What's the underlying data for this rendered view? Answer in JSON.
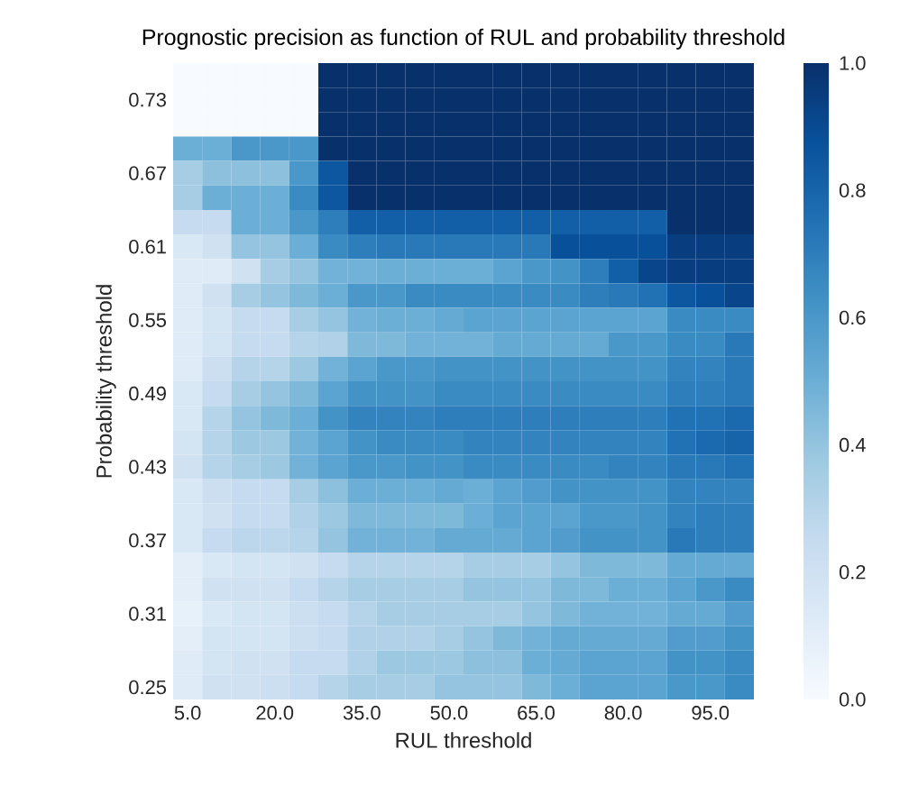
{
  "chart_data": {
    "type": "heatmap",
    "title": "Prognostic precision as function of RUL and probability threshold",
    "xlabel": "RUL threshold",
    "ylabel": "Probability threshold",
    "categories": [
      "5.0",
      null,
      null,
      "20.0",
      null,
      null,
      "35.0",
      null,
      null,
      "50.0",
      null,
      null,
      "65.0",
      null,
      null,
      "80.0",
      null,
      null,
      "95.0",
      null
    ],
    "y_categories": [
      null,
      "0.73",
      null,
      null,
      "0.67",
      null,
      null,
      "0.61",
      null,
      null,
      "0.55",
      null,
      null,
      "0.49",
      null,
      null,
      "0.43",
      null,
      null,
      "0.37",
      null,
      null,
      "0.31",
      null,
      null,
      "0.25"
    ],
    "cells": [
      [
        0,
        0,
        0,
        0,
        0,
        1,
        1,
        1,
        1,
        1,
        1,
        1,
        1,
        1,
        1,
        1,
        1,
        1,
        1,
        1
      ],
      [
        0,
        0,
        0,
        0,
        0,
        1,
        1,
        1,
        1,
        1,
        1,
        1,
        1,
        1,
        1,
        1,
        1,
        1,
        1,
        1
      ],
      [
        0,
        0,
        0,
        0,
        0,
        1,
        1,
        1,
        1,
        1,
        1,
        1,
        1,
        1,
        1,
        1,
        1,
        1,
        1,
        1
      ],
      [
        0.5,
        0.5,
        0.6,
        0.6,
        0.6,
        1,
        1,
        1,
        1,
        1,
        1,
        1,
        1,
        1,
        1,
        1,
        1,
        1,
        1,
        1
      ],
      [
        0.35,
        0.42,
        0.42,
        0.42,
        0.6,
        0.85,
        1,
        1,
        1,
        1,
        1,
        1,
        1,
        1,
        1,
        1,
        1,
        1,
        1,
        1
      ],
      [
        0.35,
        0.5,
        0.5,
        0.5,
        0.65,
        0.85,
        1,
        1,
        1,
        1,
        1,
        1,
        1,
        1,
        1,
        1,
        1,
        1,
        1,
        1
      ],
      [
        0.25,
        0.25,
        0.5,
        0.5,
        0.6,
        0.7,
        0.82,
        0.82,
        0.82,
        0.82,
        0.82,
        0.82,
        0.82,
        0.82,
        0.82,
        0.82,
        0.82,
        1,
        1,
        1
      ],
      [
        0.15,
        0.2,
        0.4,
        0.4,
        0.5,
        0.65,
        0.7,
        0.72,
        0.72,
        0.72,
        0.72,
        0.72,
        0.72,
        0.88,
        0.88,
        0.88,
        0.88,
        0.95,
        0.95,
        0.95
      ],
      [
        0.12,
        0.12,
        0.2,
        0.35,
        0.4,
        0.48,
        0.48,
        0.5,
        0.5,
        0.5,
        0.5,
        0.55,
        0.6,
        0.62,
        0.7,
        0.82,
        0.92,
        0.95,
        0.95,
        0.95
      ],
      [
        0.12,
        0.2,
        0.35,
        0.4,
        0.45,
        0.5,
        0.6,
        0.6,
        0.65,
        0.65,
        0.65,
        0.65,
        0.65,
        0.65,
        0.7,
        0.72,
        0.75,
        0.85,
        0.88,
        0.92
      ],
      [
        0.12,
        0.18,
        0.25,
        0.25,
        0.35,
        0.4,
        0.48,
        0.5,
        0.5,
        0.52,
        0.55,
        0.55,
        0.55,
        0.55,
        0.55,
        0.55,
        0.55,
        0.65,
        0.65,
        0.65
      ],
      [
        0.12,
        0.18,
        0.25,
        0.25,
        0.3,
        0.32,
        0.45,
        0.45,
        0.48,
        0.48,
        0.48,
        0.52,
        0.52,
        0.52,
        0.52,
        0.6,
        0.6,
        0.65,
        0.65,
        0.72
      ],
      [
        0.12,
        0.22,
        0.3,
        0.3,
        0.38,
        0.48,
        0.55,
        0.6,
        0.6,
        0.62,
        0.62,
        0.62,
        0.62,
        0.62,
        0.62,
        0.62,
        0.62,
        0.68,
        0.68,
        0.72
      ],
      [
        0.15,
        0.25,
        0.35,
        0.4,
        0.45,
        0.55,
        0.62,
        0.62,
        0.62,
        0.65,
        0.65,
        0.65,
        0.65,
        0.65,
        0.65,
        0.65,
        0.65,
        0.7,
        0.7,
        0.72
      ],
      [
        0.15,
        0.3,
        0.4,
        0.45,
        0.5,
        0.62,
        0.68,
        0.68,
        0.68,
        0.7,
        0.7,
        0.7,
        0.7,
        0.7,
        0.7,
        0.7,
        0.7,
        0.75,
        0.75,
        0.78
      ],
      [
        0.18,
        0.3,
        0.38,
        0.38,
        0.48,
        0.55,
        0.62,
        0.65,
        0.65,
        0.65,
        0.68,
        0.68,
        0.68,
        0.68,
        0.68,
        0.68,
        0.68,
        0.75,
        0.78,
        0.8
      ],
      [
        0.2,
        0.3,
        0.35,
        0.38,
        0.48,
        0.55,
        0.6,
        0.6,
        0.62,
        0.62,
        0.65,
        0.65,
        0.65,
        0.65,
        0.65,
        0.68,
        0.68,
        0.72,
        0.72,
        0.75
      ],
      [
        0.15,
        0.22,
        0.25,
        0.25,
        0.35,
        0.42,
        0.5,
        0.5,
        0.5,
        0.52,
        0.5,
        0.55,
        0.58,
        0.62,
        0.62,
        0.62,
        0.62,
        0.68,
        0.68,
        0.68
      ],
      [
        0.15,
        0.2,
        0.25,
        0.25,
        0.32,
        0.38,
        0.45,
        0.45,
        0.45,
        0.45,
        0.5,
        0.55,
        0.55,
        0.55,
        0.6,
        0.6,
        0.62,
        0.68,
        0.7,
        0.7
      ],
      [
        0.15,
        0.25,
        0.28,
        0.28,
        0.3,
        0.4,
        0.48,
        0.48,
        0.48,
        0.52,
        0.52,
        0.52,
        0.55,
        0.58,
        0.62,
        0.62,
        0.62,
        0.72,
        0.7,
        0.7
      ],
      [
        0.1,
        0.15,
        0.18,
        0.18,
        0.2,
        0.25,
        0.3,
        0.3,
        0.3,
        0.3,
        0.35,
        0.35,
        0.35,
        0.4,
        0.45,
        0.45,
        0.45,
        0.52,
        0.52,
        0.52
      ],
      [
        0.1,
        0.2,
        0.2,
        0.2,
        0.25,
        0.3,
        0.35,
        0.35,
        0.35,
        0.35,
        0.4,
        0.4,
        0.4,
        0.45,
        0.45,
        0.5,
        0.5,
        0.55,
        0.6,
        0.65
      ],
      [
        0.08,
        0.15,
        0.18,
        0.18,
        0.22,
        0.25,
        0.3,
        0.35,
        0.35,
        0.35,
        0.35,
        0.35,
        0.4,
        0.45,
        0.48,
        0.48,
        0.48,
        0.52,
        0.52,
        0.58
      ],
      [
        0.1,
        0.18,
        0.18,
        0.18,
        0.22,
        0.25,
        0.32,
        0.32,
        0.32,
        0.35,
        0.4,
        0.45,
        0.48,
        0.52,
        0.52,
        0.52,
        0.52,
        0.58,
        0.58,
        0.62
      ],
      [
        0.12,
        0.18,
        0.2,
        0.2,
        0.25,
        0.25,
        0.32,
        0.38,
        0.38,
        0.38,
        0.42,
        0.42,
        0.5,
        0.52,
        0.55,
        0.55,
        0.55,
        0.62,
        0.62,
        0.65
      ],
      [
        0.12,
        0.2,
        0.2,
        0.22,
        0.25,
        0.3,
        0.35,
        0.35,
        0.35,
        0.4,
        0.4,
        0.4,
        0.45,
        0.5,
        0.55,
        0.55,
        0.55,
        0.6,
        0.6,
        0.65
      ]
    ],
    "clim": [
      0,
      1
    ],
    "cticks": [
      {
        "value": 0,
        "label": "0.0"
      },
      {
        "value": 0.2,
        "label": "0.2"
      },
      {
        "value": 0.4,
        "label": "0.4"
      },
      {
        "value": 0.6,
        "label": "0.6"
      },
      {
        "value": 0.8,
        "label": "0.8"
      },
      {
        "value": 1,
        "label": "1.0"
      }
    ]
  }
}
